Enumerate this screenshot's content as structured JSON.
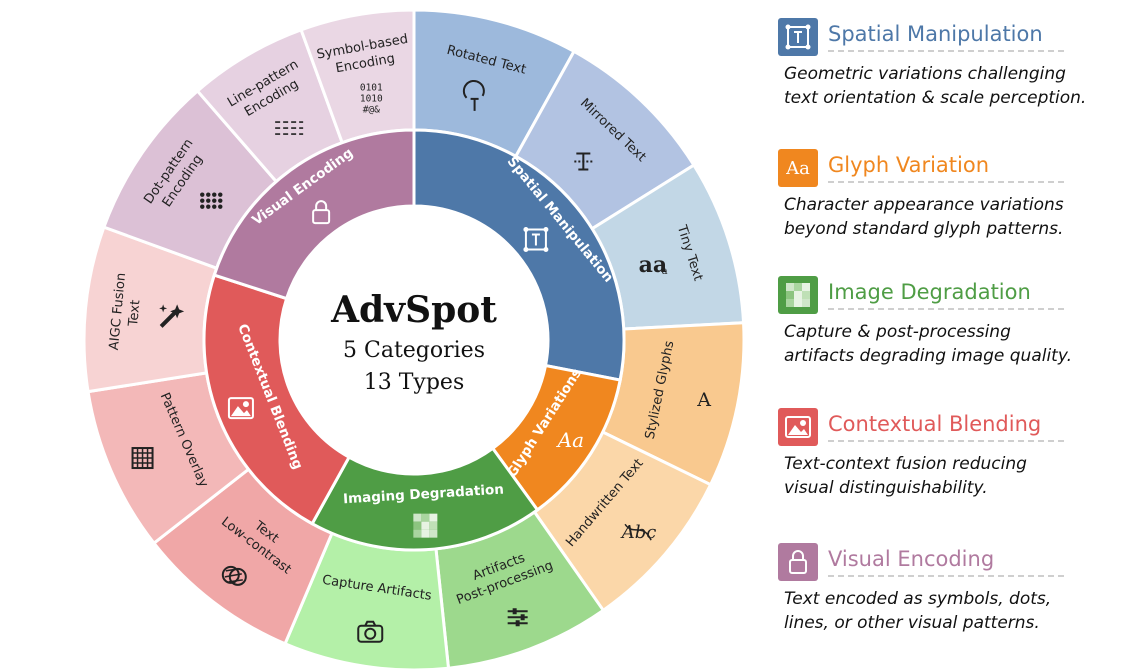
{
  "center": {
    "title": "AdvSpot",
    "line1": "5 Categories",
    "line2": "13 Types"
  },
  "categories": [
    {
      "key": "spatial",
      "inner_label": "Spatial Manipulation",
      "color": "#4e78a8",
      "icon": "transform-text-icon",
      "types": [
        {
          "lines": [
            "Rotated Text"
          ],
          "color": "#9db9dc",
          "icon": "rotated-text-icon"
        },
        {
          "lines": [
            "Mirrored Text"
          ],
          "color": "#b2c3e2",
          "icon": "mirrored-text-icon"
        },
        {
          "lines": [
            "Tiny Text"
          ],
          "color": "#c2d7e6",
          "icon": "tiny-text-icon",
          "glyph": "aa",
          "glyph_small": "a"
        }
      ]
    },
    {
      "key": "glyph",
      "inner_label": "Glyph Variations",
      "color": "#f0871f",
      "icon": "aa-icon",
      "glyph": "Aa",
      "types": [
        {
          "lines": [
            "Stylized Glyphs"
          ],
          "color": "#f9c98f",
          "icon": "stylized-glyph-icon",
          "glyph": "A"
        },
        {
          "lines": [
            "Handwritten Text"
          ],
          "color": "#fbd7a9",
          "icon": "handwritten-icon",
          "glyph": "Abc"
        }
      ]
    },
    {
      "key": "imaging",
      "inner_label": "Imaging Degradation",
      "color": "#4f9d45",
      "icon": "pixel-blocks-icon",
      "types": [
        {
          "lines": [
            "Artifacts",
            "Post-processing"
          ],
          "color": "#9dd98d",
          "icon": "sliders-icon"
        },
        {
          "lines": [
            "Capture Artifacts"
          ],
          "color": "#b4f0a8",
          "icon": "camera-icon"
        }
      ]
    },
    {
      "key": "contextual",
      "inner_label": "Contextual Blending",
      "color": "#e05a5a",
      "icon": "image-icon",
      "types": [
        {
          "lines": [
            "Text",
            "Low-contrast"
          ],
          "color": "#f0a7a7",
          "icon": "overlap-circles-icon"
        },
        {
          "lines": [
            "Pattern Overlay"
          ],
          "color": "#f3b8b8",
          "icon": "grid-icon"
        },
        {
          "lines": [
            "AIGC Fusion",
            "Text"
          ],
          "color": "#f7d3d3",
          "icon": "magic-wand-icon"
        }
      ]
    },
    {
      "key": "visual",
      "inner_label": "Visual Encoding",
      "color": "#b07a9f",
      "icon": "lock-icon",
      "types": [
        {
          "lines": [
            "Dot-pattern",
            "Encoding"
          ],
          "color": "#dcc1d6",
          "icon": "dot-grid-icon"
        },
        {
          "lines": [
            "Line-pattern",
            "Encoding"
          ],
          "color": "#e6d1e1",
          "icon": "dashed-lines-icon"
        },
        {
          "lines": [
            "Symbol-based",
            "Encoding"
          ],
          "color": "#ead7e4",
          "icon": "binary-icon",
          "sym": [
            "0101",
            "1010",
            "#@&"
          ]
        }
      ]
    }
  ],
  "legend": [
    {
      "title": "Spatial Manipulation",
      "color": "#4e78a8",
      "icon_bg": "#4e78a8",
      "icon": "transform-text-icon",
      "desc": [
        "Geometric variations challenging",
        "text orientation & scale perception."
      ]
    },
    {
      "title": "Glyph Variation",
      "color": "#f0871f",
      "icon_bg": "#f0871f",
      "icon": "aa-icon",
      "icon_text": "Aa",
      "desc": [
        "Character appearance variations",
        "beyond standard glyph patterns."
      ]
    },
    {
      "title": "Image Degradation",
      "color": "#4f9d45",
      "icon_bg": "#4f9d45",
      "icon": "pixel-blocks-icon",
      "desc": [
        "Capture & post-processing",
        "artifacts degrading image quality."
      ]
    },
    {
      "title": "Contextual Blending",
      "color": "#e05a5a",
      "icon_bg": "#e05a5a",
      "icon": "image-icon",
      "desc": [
        "Text-context fusion reducing",
        "visual distinguishability."
      ]
    },
    {
      "title": "Visual Encoding",
      "color": "#b07a9f",
      "icon_bg": "#b07a9f",
      "icon": "lock-icon",
      "desc": [
        "Text encoded as symbols, dots,",
        "lines, or other visual patterns."
      ]
    }
  ]
}
